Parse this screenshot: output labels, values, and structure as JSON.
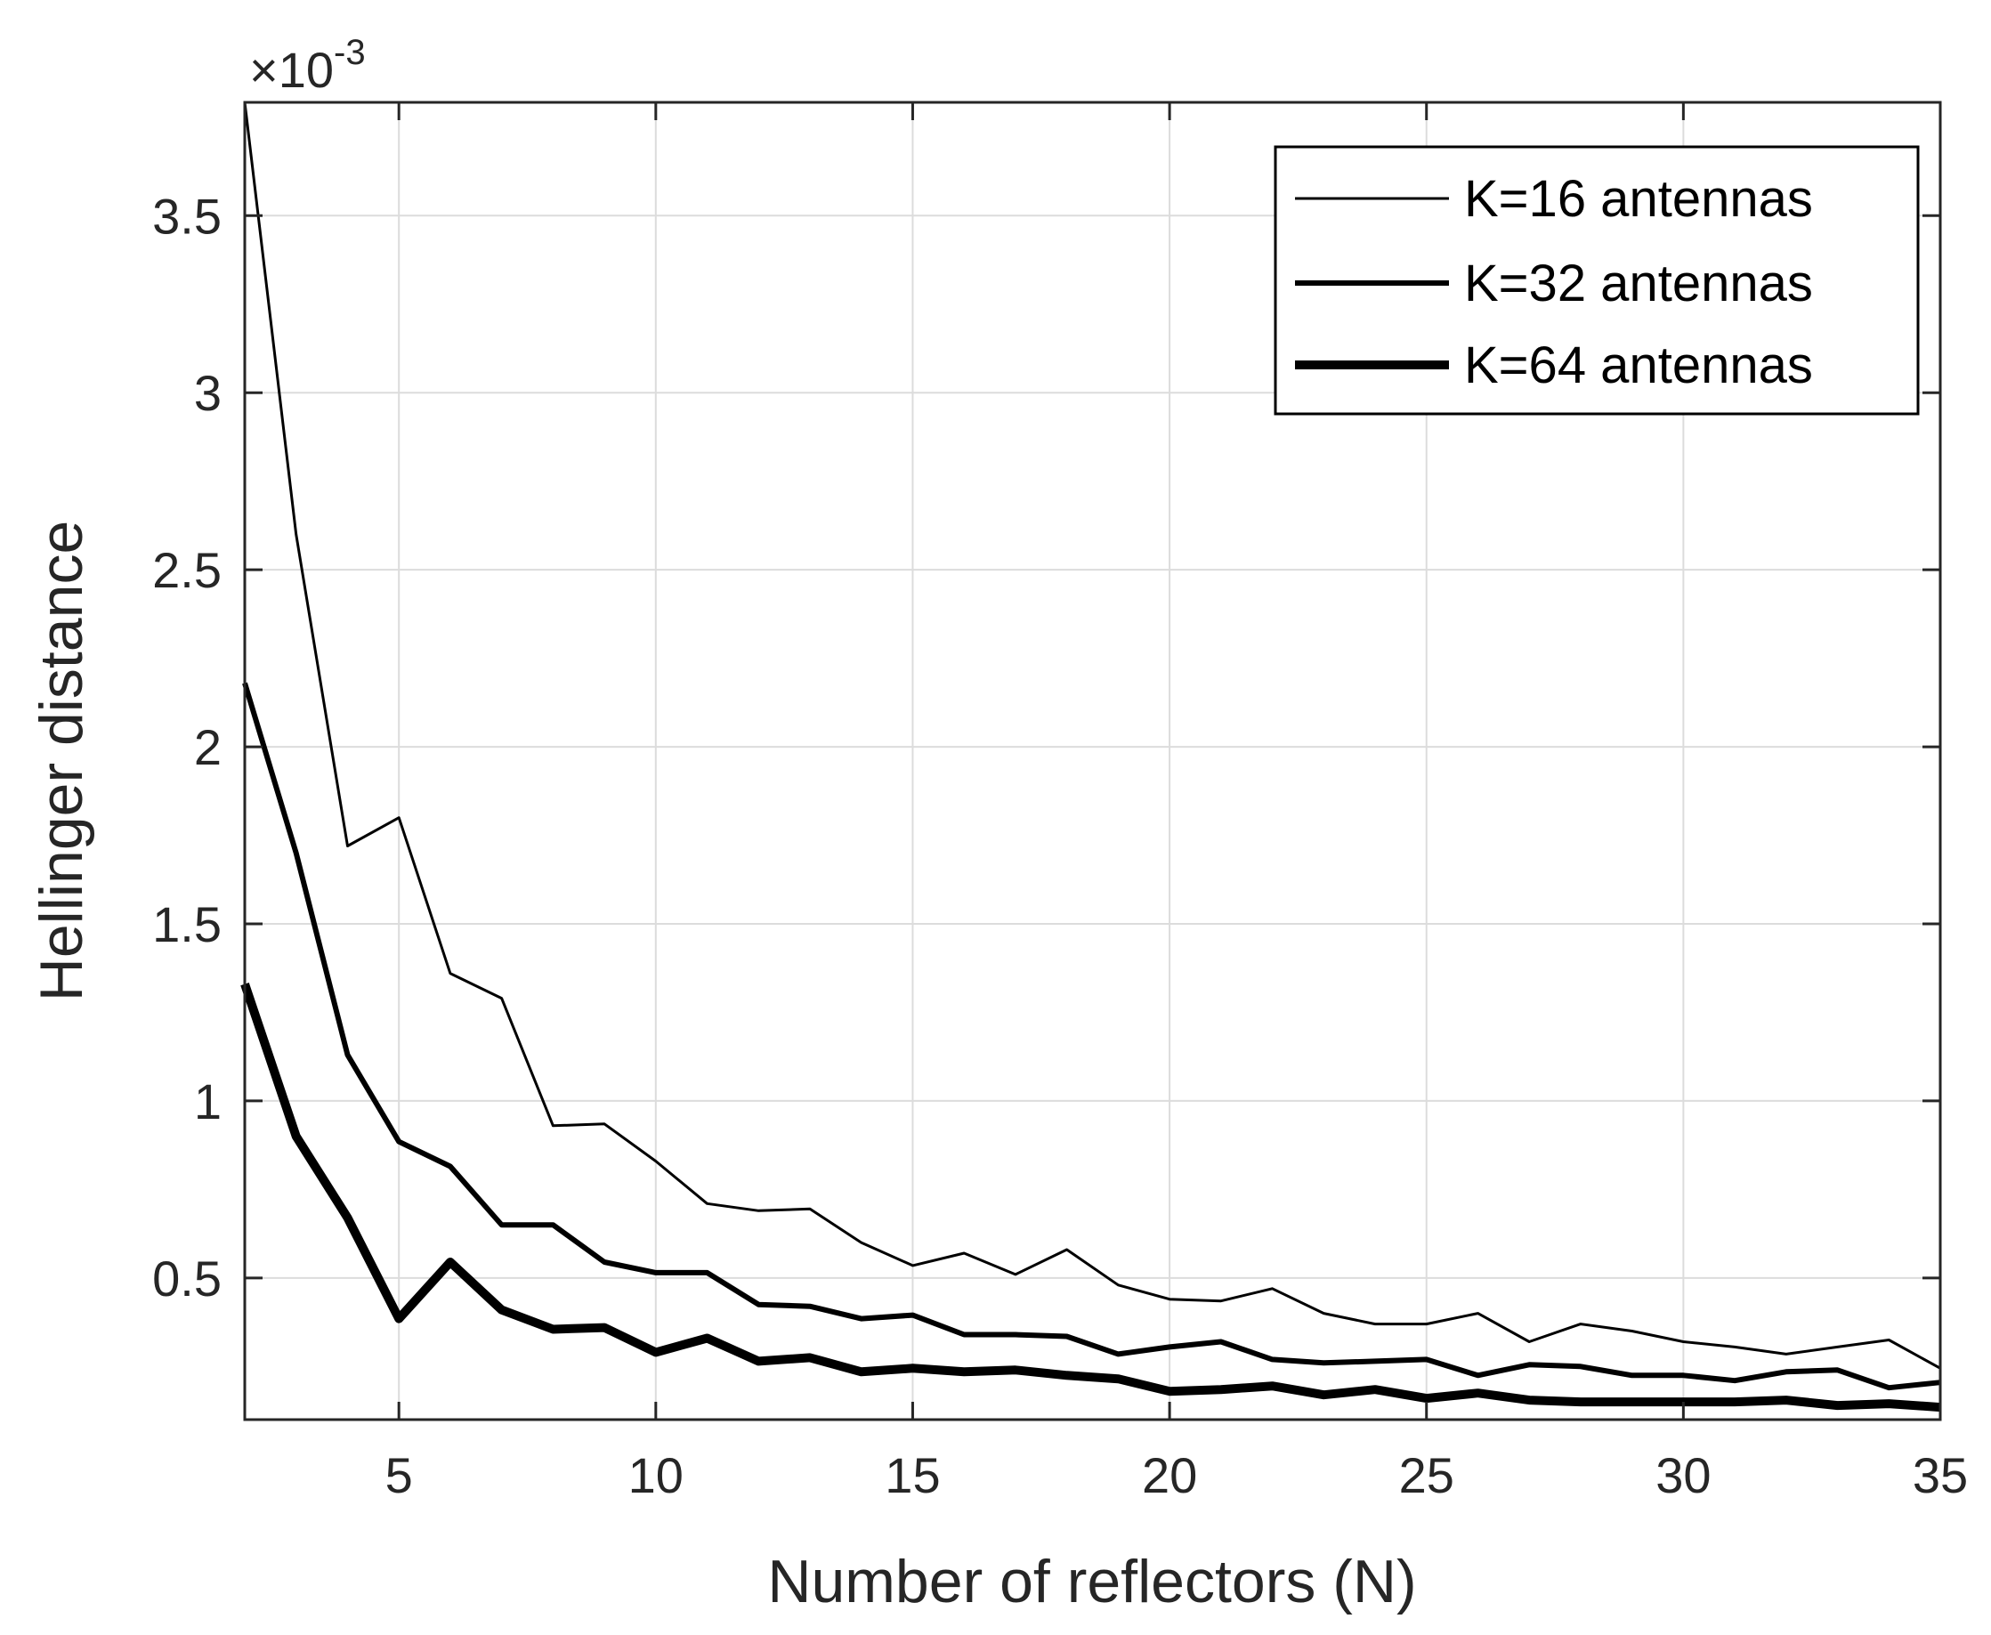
{
  "chart_data": {
    "type": "line",
    "xlabel": "Number of reflectors (N)",
    "ylabel": "Hellinger distance",
    "y_exponent": {
      "base": "×10",
      "power": "-3"
    },
    "xlim": [
      2,
      35
    ],
    "ylim": [
      0.1,
      3.82
    ],
    "xticks": [
      5,
      10,
      15,
      20,
      25,
      30,
      35
    ],
    "xtick_labels": [
      "5",
      "10",
      "15",
      "20",
      "25",
      "30",
      "35"
    ],
    "yticks": [
      0.5,
      1,
      1.5,
      2,
      2.5,
      3,
      3.5
    ],
    "ytick_labels": [
      "0.5",
      "1",
      "1.5",
      "2",
      "2.5",
      "3",
      "3.5"
    ],
    "grid": true,
    "legend_position": "top-right",
    "line_color": "#000000",
    "x": [
      2,
      3,
      4,
      5,
      6,
      7,
      8,
      9,
      10,
      11,
      12,
      13,
      14,
      15,
      16,
      17,
      18,
      19,
      20,
      21,
      22,
      23,
      24,
      25,
      26,
      27,
      28,
      29,
      30,
      31,
      32,
      33,
      34,
      35
    ],
    "series": [
      {
        "name": "K=16 antennas",
        "values": [
          3.82,
          2.6,
          1.72,
          1.8,
          1.36,
          1.29,
          0.93,
          0.935,
          0.83,
          0.71,
          0.69,
          0.695,
          0.6,
          0.535,
          0.57,
          0.51,
          0.58,
          0.48,
          0.44,
          0.435,
          0.47,
          0.4,
          0.37,
          0.37,
          0.4,
          0.32,
          0.37,
          0.35,
          0.32,
          0.305,
          0.285,
          0.305,
          0.325,
          0.245
        ]
      },
      {
        "name": "K=32 antennas",
        "values": [
          2.18,
          1.7,
          1.13,
          0.885,
          0.815,
          0.65,
          0.65,
          0.545,
          0.515,
          0.515,
          0.425,
          0.42,
          0.385,
          0.395,
          0.34,
          0.34,
          0.335,
          0.285,
          0.305,
          0.32,
          0.27,
          0.26,
          0.265,
          0.27,
          0.225,
          0.255,
          0.25,
          0.225,
          0.225,
          0.21,
          0.235,
          0.24,
          0.19,
          0.205
        ]
      },
      {
        "name": "K=64 antennas",
        "values": [
          1.33,
          0.9,
          0.67,
          0.385,
          0.545,
          0.41,
          0.355,
          0.36,
          0.29,
          0.33,
          0.265,
          0.275,
          0.235,
          0.245,
          0.235,
          0.24,
          0.225,
          0.215,
          0.18,
          0.185,
          0.195,
          0.17,
          0.185,
          0.16,
          0.175,
          0.155,
          0.15,
          0.15,
          0.15,
          0.15,
          0.155,
          0.14,
          0.145,
          0.135
        ]
      }
    ]
  }
}
